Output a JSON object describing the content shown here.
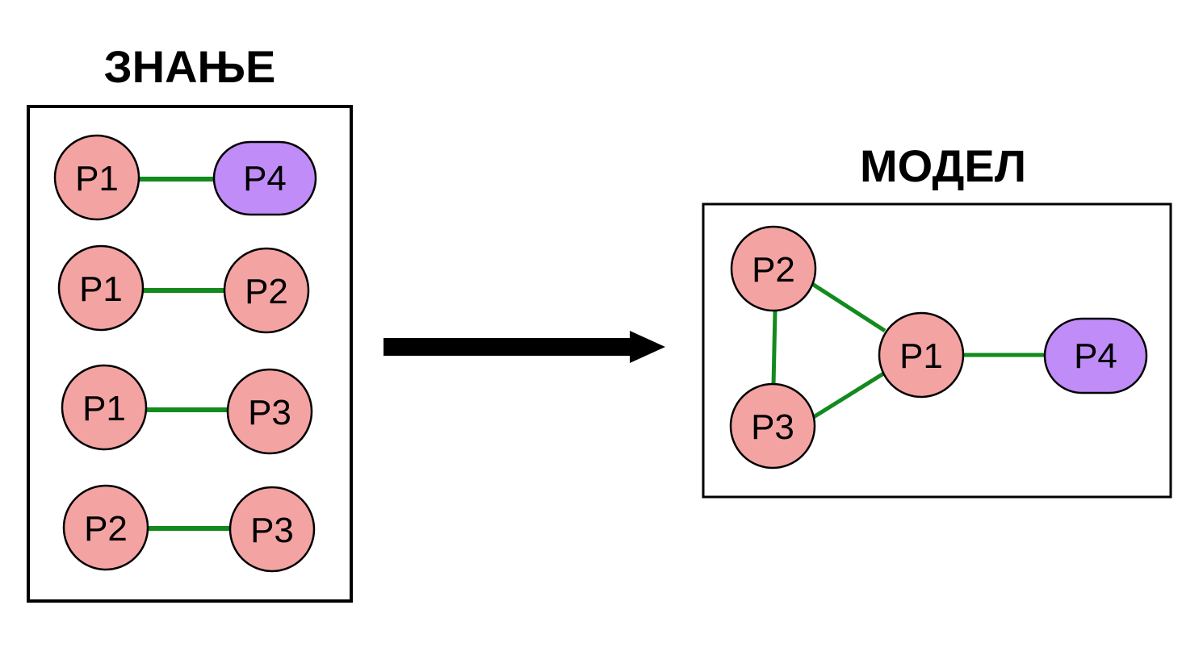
{
  "colors": {
    "node_fill": "#f4a3a3",
    "special_node_fill": "#c08cf7",
    "edge": "#138a1e",
    "stroke": "#000000",
    "background": "#ffffff"
  },
  "knowledge": {
    "title": "ЗНАЊЕ",
    "pairs": [
      {
        "left": "P1",
        "right": "P4",
        "right_shape": "pill"
      },
      {
        "left": "P1",
        "right": "P2",
        "right_shape": "circle"
      },
      {
        "left": "P1",
        "right": "P3",
        "right_shape": "circle"
      },
      {
        "left": "P2",
        "right": "P3",
        "right_shape": "circle"
      }
    ]
  },
  "arrow": {
    "icon": "right-arrow-icon"
  },
  "model": {
    "title": "МОДЕЛ",
    "nodes": {
      "p2": "P2",
      "p3": "P3",
      "p1": "P1",
      "p4": "P4"
    },
    "edges": [
      [
        "P2",
        "P1"
      ],
      [
        "P2",
        "P3"
      ],
      [
        "P3",
        "P1"
      ],
      [
        "P1",
        "P4"
      ]
    ]
  }
}
